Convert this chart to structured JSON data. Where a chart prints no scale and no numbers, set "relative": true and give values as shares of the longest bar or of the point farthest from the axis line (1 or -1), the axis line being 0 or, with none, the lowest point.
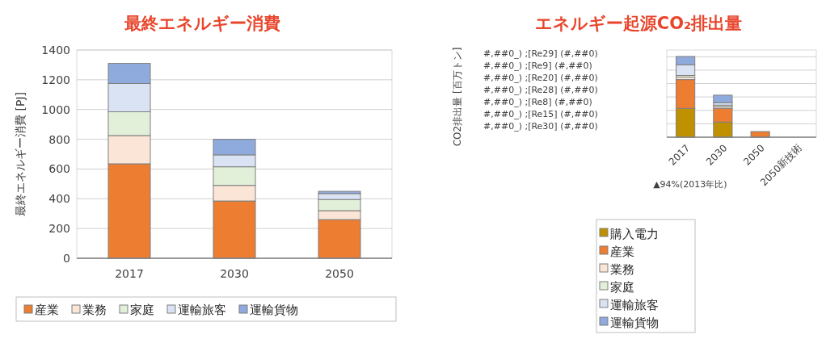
{
  "chart_data": [
    {
      "type": "bar",
      "title": "最終エネルギー消費",
      "ylabel": "最終エネルギー消費 [PJ]",
      "categories": [
        "2017",
        "2030",
        "2050"
      ],
      "stacked": true,
      "ylim": [
        0,
        1400
      ],
      "yticks": [
        0,
        200,
        400,
        600,
        800,
        1000,
        1200,
        1400
      ],
      "grid": "y",
      "legend": "bottom",
      "series": [
        {
          "name": "産業",
          "color": "#ed7d31",
          "values": [
            635,
            385,
            260
          ]
        },
        {
          "name": "業務",
          "color": "#fbe5d6",
          "values": [
            190,
            105,
            60
          ]
        },
        {
          "name": "家庭",
          "color": "#e2f0d9",
          "values": [
            160,
            125,
            75
          ]
        },
        {
          "name": "運輸旅客",
          "color": "#dae3f3",
          "values": [
            190,
            80,
            40
          ]
        },
        {
          "name": "運輸貨物",
          "color": "#8faadc",
          "values": [
            135,
            105,
            15
          ]
        }
      ]
    },
    {
      "type": "bar",
      "title": "エネルギー起源CO₂排出量",
      "ylabel": "CO2排出量 [百万トン]",
      "categories": [
        "2017",
        "2030",
        "2050",
        "2050新技術"
      ],
      "stacked": true,
      "relative": true,
      "grid": true,
      "legend": "bottom",
      "annotations": [
        "#,##0_) ;[Re29] (#,##0)",
        "#,##0_) ;[Re9] (#,##0)",
        "#,##0_) ;[Re20] (#,##0)",
        "#,##0_) ;[Re28] (#,##0)",
        "#,##0_) ;[Re8] (#,##0)",
        "#,##0_) ;[Re15] (#,##0)",
        "#,##0_) ;[Re30] (#,##0)",
        "▲94%(2013年比)"
      ],
      "series": [
        {
          "name": "購入電力",
          "color": "#bf9000",
          "values": [
            0.357,
            0.187,
            0,
            0
          ]
        },
        {
          "name": "産業",
          "color": "#ed7d31",
          "values": [
            0.357,
            0.17,
            0.07,
            0
          ]
        },
        {
          "name": "業務",
          "color": "#fbe5d6",
          "values": [
            0.031,
            0.02,
            0,
            0
          ]
        },
        {
          "name": "家庭",
          "color": "#e2f0d9",
          "values": [
            0.02,
            0.02,
            0,
            0
          ]
        },
        {
          "name": "運輸旅客",
          "color": "#dae3f3",
          "values": [
            0.133,
            0.03,
            0,
            0
          ]
        },
        {
          "name": "運輸貨物",
          "color": "#8faadc",
          "values": [
            0.102,
            0.094,
            0,
            0
          ]
        }
      ]
    }
  ]
}
